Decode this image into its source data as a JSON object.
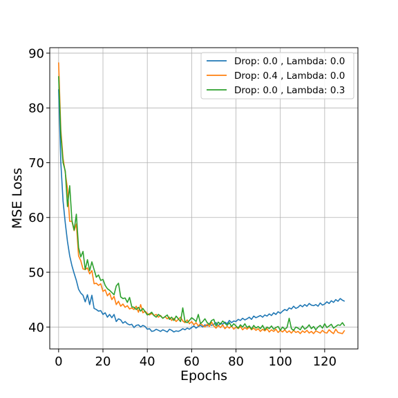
{
  "chart_data": {
    "type": "line",
    "xlabel": "Epochs",
    "ylabel": "MSE Loss",
    "xlim": [
      -4,
      135
    ],
    "ylim": [
      36,
      91
    ],
    "xticks": [
      0,
      20,
      40,
      60,
      80,
      100,
      120
    ],
    "yticks": [
      40,
      50,
      60,
      70,
      80,
      90
    ],
    "grid": true,
    "legend_position": "top-right",
    "x": [
      0,
      1,
      2,
      3,
      4,
      5,
      6,
      7,
      8,
      9,
      10,
      11,
      12,
      13,
      14,
      15,
      16,
      17,
      18,
      19,
      20,
      21,
      22,
      23,
      24,
      25,
      26,
      27,
      28,
      29,
      30,
      31,
      32,
      33,
      34,
      35,
      36,
      37,
      38,
      39,
      40,
      41,
      42,
      43,
      44,
      45,
      46,
      47,
      48,
      49,
      50,
      51,
      52,
      53,
      54,
      55,
      56,
      57,
      58,
      59,
      60,
      61,
      62,
      63,
      64,
      65,
      66,
      67,
      68,
      69,
      70,
      71,
      72,
      73,
      74,
      75,
      76,
      77,
      78,
      79,
      80,
      81,
      82,
      83,
      84,
      85,
      86,
      87,
      88,
      89,
      90,
      91,
      92,
      93,
      94,
      95,
      96,
      97,
      98,
      99,
      100,
      101,
      102,
      103,
      104,
      105,
      106,
      107,
      108,
      109,
      110,
      111,
      112,
      113,
      114,
      115,
      116,
      117,
      118,
      119,
      120,
      121,
      122,
      123,
      124,
      125,
      126,
      127,
      128,
      129
    ],
    "series": [
      {
        "name": "Drop: 0.0 , Lambda: 0.0",
        "color": "#1f77b4",
        "values": [
          83.4,
          70.0,
          63.0,
          59.0,
          55.6,
          53.0,
          51.2,
          49.8,
          48.5,
          46.9,
          46.2,
          45.8,
          44.6,
          45.9,
          44.1,
          45.8,
          43.4,
          43.2,
          42.9,
          43.0,
          42.3,
          42.6,
          41.8,
          42.3,
          41.7,
          42.3,
          41.0,
          41.5,
          41.3,
          40.7,
          41.0,
          40.6,
          40.4,
          40.5,
          39.9,
          40.3,
          40.4,
          40.0,
          40.3,
          40.1,
          39.6,
          39.7,
          39.2,
          39.3,
          39.6,
          39.4,
          39.2,
          39.5,
          39.3,
          39.1,
          39.6,
          39.4,
          39.1,
          39.3,
          39.2,
          39.4,
          39.7,
          39.5,
          39.8,
          39.6,
          39.9,
          40.2,
          39.8,
          40.1,
          40.3,
          40.0,
          40.4,
          40.2,
          40.6,
          40.3,
          40.5,
          40.8,
          40.2,
          40.7,
          40.5,
          40.9,
          40.6,
          41.2,
          40.8,
          41.1,
          41.0,
          41.4,
          41.2,
          41.6,
          41.3,
          41.5,
          41.8,
          41.4,
          42.0,
          41.7,
          41.9,
          42.1,
          41.8,
          42.2,
          42.0,
          42.4,
          42.1,
          42.6,
          42.3,
          42.8,
          42.5,
          42.9,
          43.2,
          43.0,
          43.5,
          43.3,
          43.8,
          43.4,
          43.6,
          44.0,
          43.7,
          44.1,
          43.8,
          44.3,
          44.0,
          43.9,
          44.1,
          43.8,
          44.4,
          44.0,
          44.2,
          44.6,
          44.3,
          44.8,
          44.5,
          45.0,
          44.7,
          45.2,
          44.9,
          44.7
        ]
      },
      {
        "name": "Drop: 0.4 , Lambda: 0.0",
        "color": "#ff7f0e",
        "values": [
          88.3,
          76.0,
          70.8,
          68.2,
          65.2,
          59.3,
          59.3,
          57.6,
          58.8,
          53.0,
          52.1,
          50.6,
          50.5,
          50.8,
          49.7,
          50.3,
          47.9,
          48.0,
          47.6,
          47.9,
          46.5,
          46.8,
          45.7,
          46.2,
          45.0,
          45.6,
          44.1,
          44.7,
          43.8,
          44.2,
          43.6,
          43.9,
          43.3,
          43.5,
          43.2,
          43.8,
          42.7,
          44.1,
          42.6,
          42.9,
          42.5,
          42.2,
          42.5,
          42.1,
          42.3,
          41.8,
          42.1,
          41.6,
          41.9,
          41.5,
          41.8,
          41.2,
          41.6,
          41.0,
          41.4,
          41.8,
          41.1,
          40.8,
          41.3,
          40.6,
          41.0,
          40.4,
          40.8,
          40.2,
          40.6,
          40.3,
          40.0,
          40.5,
          40.1,
          40.9,
          40.2,
          39.8,
          40.3,
          39.9,
          40.4,
          39.7,
          40.1,
          39.8,
          40.2,
          39.6,
          40.0,
          39.7,
          40.1,
          39.5,
          39.9,
          39.6,
          40.0,
          39.5,
          39.8,
          39.4,
          39.7,
          39.2,
          39.6,
          39.3,
          39.7,
          39.1,
          39.5,
          39.2,
          39.6,
          39.0,
          39.4,
          39.1,
          39.5,
          39.0,
          39.3,
          38.9,
          39.4,
          39.0,
          39.2,
          38.8,
          39.3,
          39.0,
          39.4,
          38.9,
          39.2,
          38.8,
          39.3,
          39.1,
          38.9,
          39.4,
          39.0,
          38.9,
          39.5,
          39.1,
          38.8,
          39.6,
          39.0,
          38.9,
          38.8,
          39.4
        ]
      },
      {
        "name": "Drop: 0.0 , Lambda: 0.3",
        "color": "#2ca02c",
        "values": [
          85.8,
          75.0,
          70.0,
          68.5,
          62.0,
          65.8,
          59.5,
          57.7,
          60.6,
          54.5,
          52.8,
          53.8,
          50.5,
          52.3,
          50.3,
          51.9,
          50.5,
          49.1,
          49.5,
          48.5,
          48.7,
          47.6,
          47.0,
          46.7,
          46.3,
          45.9,
          47.5,
          48.0,
          45.5,
          45.2,
          45.3,
          44.5,
          45.4,
          43.7,
          43.6,
          43.2,
          43.6,
          42.9,
          43.4,
          42.8,
          42.2,
          42.4,
          42.7,
          42.1,
          41.8,
          42.3,
          42.0,
          41.6,
          41.9,
          42.2,
          41.4,
          41.8,
          41.2,
          42.0,
          41.5,
          41.0,
          43.5,
          41.0,
          40.8,
          41.2,
          41.7,
          41.4,
          41.0,
          42.3,
          40.6,
          41.0,
          41.5,
          40.8,
          40.5,
          41.2,
          41.4,
          40.2,
          40.9,
          40.5,
          41.1,
          40.7,
          40.3,
          40.8,
          40.1,
          40.6,
          40.2,
          39.8,
          40.4,
          40.0,
          40.6,
          39.9,
          40.2,
          39.6,
          40.3,
          39.8,
          40.1,
          39.7,
          40.3,
          39.5,
          40.0,
          39.7,
          40.2,
          39.6,
          39.9,
          40.1,
          39.4,
          40.0,
          39.6,
          39.9,
          41.6,
          39.7,
          39.4,
          40.0,
          39.8,
          39.5,
          40.2,
          39.6,
          39.9,
          40.4,
          39.7,
          40.1,
          39.5,
          40.0,
          40.3,
          39.8,
          40.6,
          39.9,
          40.2,
          40.5,
          39.8,
          40.1,
          40.4,
          40.3,
          40.8,
          40.2
        ]
      }
    ]
  }
}
